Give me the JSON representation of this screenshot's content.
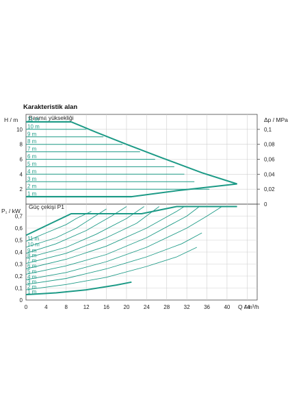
{
  "chart_data": {
    "type": "line",
    "title": "Karakteristik alan",
    "colors": {
      "curve": "#1c9a86",
      "grid": "#cfcfcf",
      "axis": "#444444"
    },
    "x": {
      "label": "Q / m³/h",
      "range": [
        0,
        46
      ],
      "ticks": [
        "0",
        "4",
        "8",
        "12",
        "16",
        "20",
        "24",
        "28",
        "32",
        "36",
        "40",
        "44"
      ],
      "tick_values": [
        0,
        4,
        8,
        12,
        16,
        20,
        24,
        28,
        32,
        36,
        40,
        44
      ]
    },
    "head_panel": {
      "subtitle": "Basma yüksekliği",
      "ylabel": "H / m",
      "ylim": [
        0,
        12
      ],
      "ticks": [
        "2",
        "4",
        "6",
        "8",
        "10"
      ],
      "tick_values": [
        2,
        4,
        6,
        8,
        10
      ],
      "ylabel_right": "Δp / MPa",
      "right_ticks": [
        "0",
        "0,02",
        "0,04",
        "0,06",
        "0,08",
        "0,1"
      ],
      "right_tick_values": [
        0,
        2,
        4,
        6,
        8,
        10
      ],
      "grid": true,
      "envelope": [
        [
          0,
          1
        ],
        [
          21,
          1
        ],
        [
          30,
          1.8
        ],
        [
          42,
          2.7
        ],
        [
          35,
          4.2
        ],
        [
          27,
          6.2
        ],
        [
          20,
          8
        ],
        [
          14,
          9.6
        ],
        [
          9,
          11
        ]
      ],
      "envelope_top": [
        [
          0,
          11
        ],
        [
          9,
          11
        ]
      ],
      "series": [
        {
          "name": "1 m",
          "values": [
            [
              0,
              1
            ],
            [
              21,
              1
            ]
          ]
        },
        {
          "name": "2 m",
          "values": [
            [
              0,
              2
            ],
            [
              36.5,
              2
            ]
          ]
        },
        {
          "name": "3 m",
          "values": [
            [
              0,
              3
            ],
            [
              33.5,
              3
            ]
          ]
        },
        {
          "name": "4 m",
          "values": [
            [
              0,
              4
            ],
            [
              31.5,
              4
            ]
          ]
        },
        {
          "name": "5 m",
          "values": [
            [
              0,
              5
            ],
            [
              29.5,
              5
            ]
          ]
        },
        {
          "name": "6 m",
          "values": [
            [
              0,
              6
            ],
            [
              25.7,
              6
            ]
          ]
        },
        {
          "name": "7 m",
          "values": [
            [
              0,
              7
            ],
            [
              22.7,
              7
            ]
          ]
        },
        {
          "name": "8 m",
          "values": [
            [
              0,
              8
            ],
            [
              19.2,
              8
            ]
          ]
        },
        {
          "name": "9 m",
          "values": [
            [
              0,
              9
            ],
            [
              15.4,
              9
            ]
          ]
        },
        {
          "name": "10 m",
          "values": [
            [
              0,
              10
            ],
            [
              12,
              10
            ]
          ]
        },
        {
          "name": "11 m",
          "values": [
            [
              0,
              11
            ],
            [
              9,
              11
            ]
          ]
        }
      ]
    },
    "power_panel": {
      "subtitle": "Güç çekişi P1",
      "ylabel": "P₁ / kW",
      "ylim": [
        0,
        0.8
      ],
      "ticks": [
        "0",
        "0,1",
        "0,2",
        "0,3",
        "0,4",
        "0,5",
        "0,6",
        "0,7"
      ],
      "tick_values": [
        0,
        0.1,
        0.2,
        0.3,
        0.4,
        0.5,
        0.6,
        0.7
      ],
      "grid": true,
      "envelope_top": [
        [
          0,
          0.54
        ],
        [
          5,
          0.64
        ],
        [
          9,
          0.72
        ],
        [
          23,
          0.72
        ],
        [
          30,
          0.78
        ],
        [
          42,
          0.78
        ]
      ],
      "series": [
        {
          "name": "1 m",
          "values": [
            [
              0,
              0.045
            ],
            [
              6,
              0.06
            ],
            [
              12,
              0.085
            ],
            [
              18,
              0.125
            ],
            [
              21,
              0.15
            ]
          ]
        },
        {
          "name": "2 m",
          "values": [
            [
              0,
              0.085
            ],
            [
              8,
              0.13
            ],
            [
              16,
              0.19
            ],
            [
              24,
              0.28
            ],
            [
              30,
              0.36
            ],
            [
              34,
              0.44
            ]
          ]
        },
        {
          "name": "3 m",
          "values": [
            [
              0,
              0.13
            ],
            [
              8,
              0.18
            ],
            [
              16,
              0.26
            ],
            [
              24,
              0.36
            ],
            [
              31,
              0.47
            ],
            [
              35,
              0.56
            ]
          ]
        },
        {
          "name": "4 m",
          "values": [
            [
              0,
              0.17
            ],
            [
              8,
              0.23
            ],
            [
              16,
              0.32
            ],
            [
              24,
              0.44
            ],
            [
              32,
              0.6
            ],
            [
              36,
              0.7
            ],
            [
              39,
              0.78
            ]
          ]
        },
        {
          "name": "5 m",
          "values": [
            [
              0,
              0.215
            ],
            [
              8,
              0.285
            ],
            [
              16,
              0.38
            ],
            [
              24,
              0.52
            ],
            [
              32,
              0.7
            ],
            [
              34.5,
              0.78
            ]
          ]
        },
        {
          "name": "6 m",
          "values": [
            [
              0,
              0.26
            ],
            [
              8,
              0.34
            ],
            [
              16,
              0.45
            ],
            [
              24,
              0.6
            ],
            [
              30,
              0.74
            ],
            [
              31.5,
              0.78
            ]
          ]
        },
        {
          "name": "7 m",
          "values": [
            [
              0,
              0.305
            ],
            [
              8,
              0.39
            ],
            [
              16,
              0.52
            ],
            [
              22,
              0.64
            ],
            [
              26.5,
              0.78
            ]
          ]
        },
        {
          "name": "8 m",
          "values": [
            [
              0,
              0.35
            ],
            [
              8,
              0.44
            ],
            [
              14,
              0.55
            ],
            [
              20,
              0.68
            ],
            [
              23.5,
              0.78
            ]
          ]
        },
        {
          "name": "9 m",
          "values": [
            [
              0,
              0.39
            ],
            [
              6,
              0.47
            ],
            [
              12,
              0.58
            ],
            [
              17,
              0.7
            ],
            [
              20,
              0.78
            ]
          ]
        },
        {
          "name": "10 m",
          "values": [
            [
              0,
              0.44
            ],
            [
              6,
              0.52
            ],
            [
              10,
              0.6
            ],
            [
              13,
              0.68
            ],
            [
              16,
              0.76
            ]
          ]
        },
        {
          "name": "11 m",
          "values": [
            [
              0,
              0.49
            ],
            [
              4,
              0.56
            ],
            [
              8,
              0.63
            ],
            [
              10,
              0.68
            ],
            [
              13,
              0.74
            ]
          ]
        }
      ]
    }
  }
}
